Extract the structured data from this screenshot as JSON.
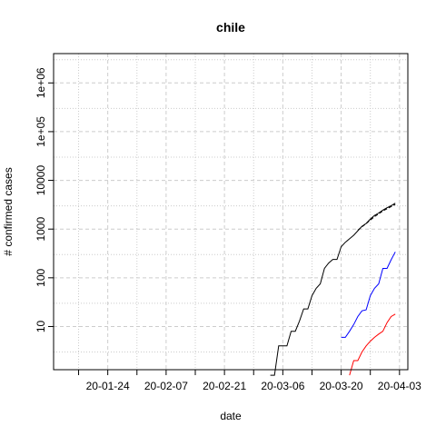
{
  "chart_data": {
    "type": "line",
    "title": "chile",
    "xlabel": "date",
    "ylabel": "# confirmed cases",
    "x_axis": {
      "type": "date",
      "range": [
        "2020-01-11",
        "2020-04-05"
      ],
      "ticks": [
        {
          "date": "2020-01-24",
          "label": "20-01-24"
        },
        {
          "date": "2020-02-07",
          "label": "20-02-07"
        },
        {
          "date": "2020-02-21",
          "label": "20-02-21"
        },
        {
          "date": "2020-03-06",
          "label": "20-03-06"
        },
        {
          "date": "2020-03-20",
          "label": "20-03-20"
        },
        {
          "date": "2020-04-03",
          "label": "20-04-03"
        }
      ]
    },
    "y_axis": {
      "scale": "log10",
      "range": [
        1.3,
        4000000
      ],
      "ticks": [
        {
          "value": 10,
          "label": "10"
        },
        {
          "value": 100,
          "label": "100"
        },
        {
          "value": 1000,
          "label": "1000"
        },
        {
          "value": 10000,
          "label": "10000"
        },
        {
          "value": 100000,
          "label": "1e+05"
        },
        {
          "value": 1000000,
          "label": "1e+06"
        }
      ]
    },
    "grid": true,
    "series": [
      {
        "color": "#000000",
        "points": [
          [
            "2020-03-03",
            1
          ],
          [
            "2020-03-04",
            1
          ],
          [
            "2020-03-05",
            4
          ],
          [
            "2020-03-06",
            4
          ],
          [
            "2020-03-07",
            4
          ],
          [
            "2020-03-08",
            8
          ],
          [
            "2020-03-09",
            8
          ],
          [
            "2020-03-10",
            13
          ],
          [
            "2020-03-11",
            23
          ],
          [
            "2020-03-12",
            23
          ],
          [
            "2020-03-13",
            43
          ],
          [
            "2020-03-14",
            61
          ],
          [
            "2020-03-15",
            75
          ],
          [
            "2020-03-16",
            156
          ],
          [
            "2020-03-17",
            201
          ],
          [
            "2020-03-18",
            238
          ],
          [
            "2020-03-19",
            238
          ],
          [
            "2020-03-20",
            434
          ],
          [
            "2020-03-21",
            537
          ],
          [
            "2020-03-22",
            632
          ],
          [
            "2020-03-23",
            746
          ],
          [
            "2020-03-24",
            922
          ],
          [
            "2020-03-25",
            1142
          ],
          [
            "2020-03-26",
            1306
          ],
          [
            "2020-03-27",
            1610
          ],
          [
            "2020-03-28",
            1909
          ],
          [
            "2020-03-29",
            2139
          ],
          [
            "2020-03-30",
            2449
          ],
          [
            "2020-03-31",
            2738
          ],
          [
            "2020-04-01",
            3031
          ],
          [
            "2020-04-02",
            3404
          ]
        ]
      },
      {
        "color": "#000000",
        "dashed": true,
        "points": [
          [
            "2020-03-24",
            950
          ],
          [
            "2020-03-26",
            1300
          ],
          [
            "2020-03-28",
            1800
          ],
          [
            "2020-03-30",
            2350
          ],
          [
            "2020-04-01",
            2900
          ],
          [
            "2020-04-02",
            3200
          ]
        ]
      },
      {
        "color": "#0000ff",
        "points": [
          [
            "2020-03-20",
            6
          ],
          [
            "2020-03-21",
            6
          ],
          [
            "2020-03-22",
            8
          ],
          [
            "2020-03-23",
            11
          ],
          [
            "2020-03-24",
            16
          ],
          [
            "2020-03-25",
            21
          ],
          [
            "2020-03-26",
            22
          ],
          [
            "2020-03-27",
            43
          ],
          [
            "2020-03-28",
            61
          ],
          [
            "2020-03-29",
            75
          ],
          [
            "2020-03-30",
            156
          ],
          [
            "2020-03-31",
            156
          ],
          [
            "2020-04-01",
            234
          ],
          [
            "2020-04-02",
            341
          ]
        ]
      },
      {
        "color": "#ff0000",
        "points": [
          [
            "2020-03-22",
            1
          ],
          [
            "2020-03-23",
            2
          ],
          [
            "2020-03-24",
            2
          ],
          [
            "2020-03-25",
            3
          ],
          [
            "2020-03-26",
            4
          ],
          [
            "2020-03-27",
            5
          ],
          [
            "2020-03-28",
            6
          ],
          [
            "2020-03-29",
            7
          ],
          [
            "2020-03-30",
            8
          ],
          [
            "2020-03-31",
            12
          ],
          [
            "2020-04-01",
            16
          ],
          [
            "2020-04-02",
            18
          ]
        ]
      }
    ]
  }
}
